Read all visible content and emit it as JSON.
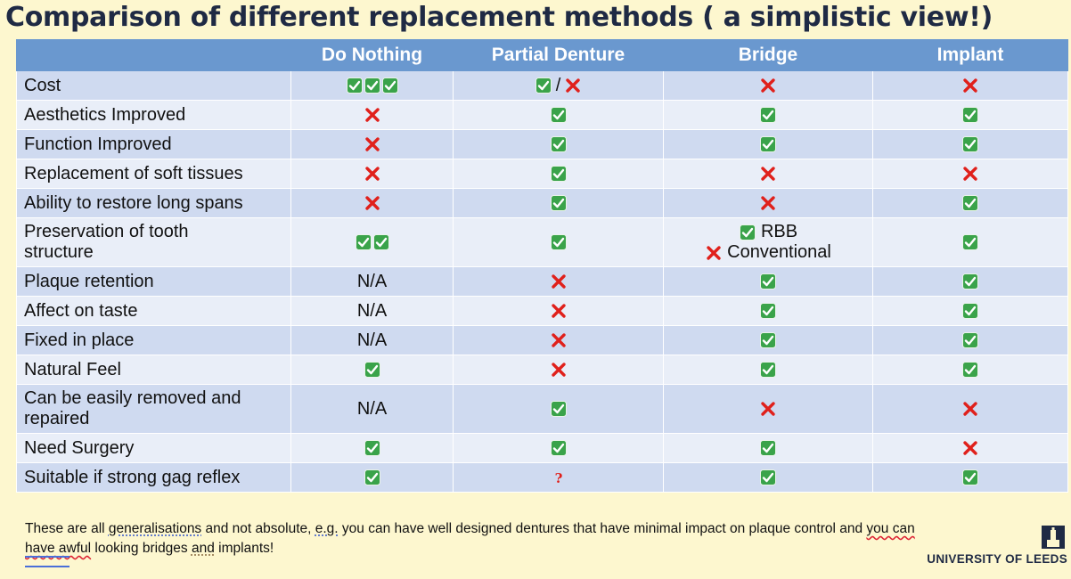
{
  "title": "Comparison of different replacement methods ( a simplistic view!)",
  "icons": {
    "yes": "green-check-icon",
    "no": "red-x-icon",
    "unknown": "red-question-icon"
  },
  "colors": {
    "header_bg": "#6a98cf",
    "row_odd": "#cfdaf0",
    "row_even": "#e9eef8",
    "check": "#3aa34a",
    "cross": "#e0201b",
    "background": "#fdf7cf"
  },
  "columns": [
    "",
    "Do Nothing",
    "Partial Denture",
    "Bridge",
    "Implant"
  ],
  "rows": [
    {
      "label": "Cost",
      "cells": [
        [
          "CCC"
        ],
        [
          "C/X"
        ],
        [
          "X"
        ],
        [
          "X"
        ]
      ]
    },
    {
      "label": "Aesthetics Improved",
      "cells": [
        [
          "X"
        ],
        [
          "C"
        ],
        [
          "C"
        ],
        [
          "C"
        ]
      ]
    },
    {
      "label": "Function Improved",
      "cells": [
        [
          "X"
        ],
        [
          "C"
        ],
        [
          "C"
        ],
        [
          "C"
        ]
      ]
    },
    {
      "label": "Replacement of soft tissues",
      "cells": [
        [
          "X"
        ],
        [
          "C"
        ],
        [
          "X"
        ],
        [
          "X"
        ]
      ]
    },
    {
      "label": "Ability to restore long spans",
      "cells": [
        [
          "X"
        ],
        [
          "C"
        ],
        [
          "X"
        ],
        [
          "C"
        ]
      ]
    },
    {
      "label": "Preservation of tooth structure",
      "tall": true,
      "cells": [
        [
          "CC"
        ],
        [
          "C"
        ],
        [
          "C RBB",
          "X Conventional"
        ],
        [
          "C"
        ]
      ]
    },
    {
      "label": "Plaque retention",
      "cells": [
        [
          "N/A"
        ],
        [
          "X"
        ],
        [
          "C"
        ],
        [
          "C"
        ]
      ]
    },
    {
      "label": "Affect on taste",
      "cells": [
        [
          "N/A"
        ],
        [
          "X"
        ],
        [
          "C"
        ],
        [
          "C"
        ]
      ]
    },
    {
      "label": "Fixed in place",
      "cells": [
        [
          "N/A"
        ],
        [
          "X"
        ],
        [
          "C"
        ],
        [
          "C"
        ]
      ]
    },
    {
      "label": "Natural Feel",
      "cells": [
        [
          "C"
        ],
        [
          "X"
        ],
        [
          "C"
        ],
        [
          "C"
        ]
      ]
    },
    {
      "label": "Can be easily removed and repaired",
      "tall": true,
      "cells": [
        [
          "N/A"
        ],
        [
          "C"
        ],
        [
          "X"
        ],
        [
          "X"
        ]
      ]
    },
    {
      "label": "Need Surgery",
      "cells": [
        [
          "C"
        ],
        [
          "C"
        ],
        [
          "C"
        ],
        [
          "X"
        ]
      ]
    },
    {
      "label": "Suitable if strong gag reflex",
      "cells": [
        [
          "C"
        ],
        [
          "?"
        ],
        [
          "C"
        ],
        [
          "C"
        ]
      ]
    }
  ],
  "footnote": {
    "part1": "These are all ",
    "part2": "generalisations",
    "part3": " and not absolute, ",
    "part4": "e.g.",
    "part5": " you can have well designed dentures that have minimal impact on plaque ",
    "part6": "control",
    "part7": " and ",
    "part8": "you can have awful",
    "part9": " looking bridges ",
    "part10": "and",
    "part11": " implants!"
  },
  "logo": {
    "name": "UNIVERSITY OF LEEDS"
  }
}
